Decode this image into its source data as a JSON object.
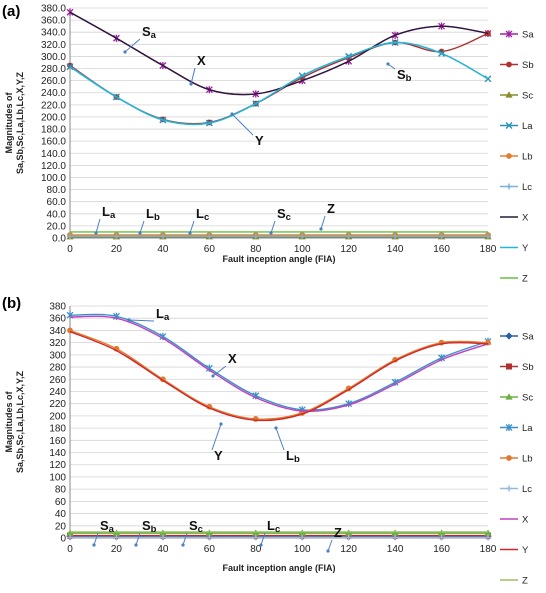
{
  "chart_data": [
    {
      "panel_label": "(a)",
      "type": "line",
      "xlabel": "Fault inception angle (FIA)",
      "ylabel": "Magnitudes of\nSa,Sb,Sc,La,Lb,Lc,X,Y,Z",
      "x": [
        0,
        20,
        40,
        60,
        80,
        100,
        120,
        140,
        160,
        180
      ],
      "xlim": [
        0,
        180
      ],
      "ylim": [
        0,
        380
      ],
      "y_ticks": [
        "0.0",
        "20.0",
        "40.0",
        "60.0",
        "80.0",
        "100.0",
        "120.0",
        "140.0",
        "160.0",
        "180.0",
        "200.0",
        "220.0",
        "240.0",
        "260.0",
        "280.0",
        "300.0",
        "320.0",
        "340.0",
        "360.0",
        "380.0"
      ],
      "x_ticks": [
        "0",
        "20",
        "40",
        "60",
        "80",
        "100",
        "120",
        "140",
        "160",
        "180"
      ],
      "grid": true,
      "legend_position": "right",
      "series": [
        {
          "name": "Sa",
          "color": "#a020a0",
          "marker": "star",
          "values": [
            373,
            330,
            285,
            245,
            238,
            260,
            292,
            335,
            350,
            338
          ]
        },
        {
          "name": "Sb",
          "color": "#b03030",
          "marker": "circle",
          "values": [
            285,
            233,
            196,
            191,
            222,
            265,
            298,
            323,
            308,
            338
          ]
        },
        {
          "name": "Sc",
          "color": "#8a8a2a",
          "marker": "triangle",
          "values": [
            2,
            2,
            2,
            2,
            2,
            2,
            2,
            2,
            2,
            2
          ]
        },
        {
          "name": "La",
          "color": "#2a8fb5",
          "marker": "x",
          "values": [
            283,
            233,
            195,
            190,
            222,
            268,
            300,
            323,
            305,
            263
          ]
        },
        {
          "name": "Lb",
          "color": "#e08030",
          "marker": "circle",
          "values": [
            5,
            5,
            5,
            5,
            5,
            5,
            5,
            5,
            5,
            5
          ]
        },
        {
          "name": "Lc",
          "color": "#7eb0d8",
          "marker": "plus",
          "values": [
            3,
            3,
            3,
            3,
            3,
            3,
            3,
            3,
            3,
            3
          ]
        },
        {
          "name": "X",
          "color": "#2b1b3a",
          "marker": "none",
          "values": [
            373,
            330,
            285,
            245,
            238,
            260,
            292,
            335,
            350,
            338
          ]
        },
        {
          "name": "Y",
          "color": "#20b8d8",
          "marker": "none",
          "values": [
            283,
            233,
            195,
            190,
            222,
            268,
            300,
            323,
            305,
            263
          ]
        },
        {
          "name": "Z",
          "color": "#66c040",
          "marker": "none",
          "values": [
            10,
            10,
            10,
            10,
            10,
            10,
            10,
            10,
            10,
            10
          ]
        }
      ],
      "annotations": [
        {
          "label": "S",
          "sub": "a"
        },
        {
          "label": "X",
          "sub": ""
        },
        {
          "label": "S",
          "sub": "b"
        },
        {
          "label": "Y",
          "sub": ""
        },
        {
          "label": "L",
          "sub": "a"
        },
        {
          "label": "L",
          "sub": "b"
        },
        {
          "label": "L",
          "sub": "c"
        },
        {
          "label": "S",
          "sub": "c"
        },
        {
          "label": "Z",
          "sub": ""
        }
      ]
    },
    {
      "panel_label": "(b)",
      "type": "line",
      "xlabel": "Fault inception angle (FIA)",
      "ylabel": "Magnitudes of\nSa,Sb,Sc,La,Lb,Lc,X,Y,Z",
      "x": [
        0,
        20,
        40,
        60,
        80,
        100,
        120,
        140,
        160,
        180
      ],
      "xlim": [
        0,
        180
      ],
      "ylim": [
        0,
        380
      ],
      "y_ticks": [
        "0",
        "20",
        "40",
        "60",
        "80",
        "100",
        "120",
        "140",
        "160",
        "180",
        "200",
        "220",
        "240",
        "260",
        "280",
        "300",
        "320",
        "340",
        "360",
        "380"
      ],
      "x_ticks": [
        "0",
        "20",
        "40",
        "60",
        "80",
        "100",
        "120",
        "140",
        "160",
        "180"
      ],
      "grid": true,
      "legend_position": "right",
      "series": [
        {
          "name": "Sa",
          "color": "#2a5fa8",
          "marker": "diamond",
          "values": [
            2,
            2,
            2,
            2,
            2,
            2,
            2,
            2,
            2,
            2
          ]
        },
        {
          "name": "Sb",
          "color": "#b03030",
          "marker": "square",
          "values": [
            4,
            4,
            4,
            4,
            4,
            4,
            4,
            4,
            4,
            4
          ]
        },
        {
          "name": "Sc",
          "color": "#6ab040",
          "marker": "triangle",
          "values": [
            8,
            8,
            8,
            8,
            8,
            8,
            8,
            8,
            8,
            8
          ]
        },
        {
          "name": "La",
          "color": "#3a90c8",
          "marker": "star",
          "values": [
            365,
            363,
            330,
            278,
            233,
            210,
            220,
            255,
            295,
            322
          ]
        },
        {
          "name": "Lb",
          "color": "#e07a30",
          "marker": "circle",
          "values": [
            340,
            310,
            260,
            215,
            195,
            205,
            245,
            292,
            320,
            320
          ]
        },
        {
          "name": "Lc",
          "color": "#9ab8d8",
          "marker": "plus",
          "values": [
            1,
            1,
            1,
            1,
            1,
            1,
            1,
            1,
            1,
            1
          ]
        },
        {
          "name": "X",
          "color": "#c040c0",
          "marker": "none",
          "values": [
            362,
            360,
            327,
            275,
            230,
            208,
            218,
            252,
            292,
            318
          ]
        },
        {
          "name": "Y",
          "color": "#d02828",
          "marker": "none",
          "values": [
            338,
            307,
            258,
            213,
            193,
            203,
            243,
            290,
            318,
            318
          ]
        },
        {
          "name": "Z",
          "color": "#98c060",
          "marker": "none",
          "values": [
            10,
            10,
            10,
            10,
            10,
            10,
            10,
            10,
            10,
            10
          ]
        }
      ],
      "annotations": [
        {
          "label": "L",
          "sub": "a"
        },
        {
          "label": "X",
          "sub": ""
        },
        {
          "label": "Y",
          "sub": ""
        },
        {
          "label": "L",
          "sub": "b"
        },
        {
          "label": "S",
          "sub": "a"
        },
        {
          "label": "S",
          "sub": "b"
        },
        {
          "label": "S",
          "sub": "c"
        },
        {
          "label": "L",
          "sub": "c"
        },
        {
          "label": "Z",
          "sub": ""
        }
      ]
    }
  ]
}
